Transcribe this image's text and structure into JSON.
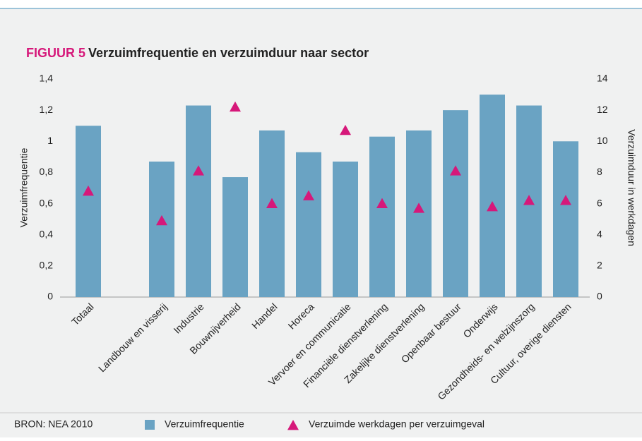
{
  "chart_data": {
    "type": "bar",
    "figure_label": "FIGUUR 5",
    "title": "Verzuimfrequentie en verzuimduur naar sector",
    "source": "BRON: NEA 2010",
    "y_label": "Verzuimfrequentie",
    "y2_label": "Verzuimduur in werkdagen",
    "categories": [
      "Totaal",
      null,
      "Landbouw en visserij",
      "Industrie",
      "Bouwnijverheid",
      "Handel",
      "Horeca",
      "Vervoer en communicatie",
      "Financiële dienstverlening",
      "Zakelijke dienstverlening",
      "Openbaar bestuur",
      "Onderwijs",
      "Gezondheids- en welzijnszorg",
      "Cultuur, overige diensten"
    ],
    "series": [
      {
        "name": "Verzuimfrequentie",
        "color": "#6aa3c3",
        "type": "bar",
        "values": [
          1.1,
          null,
          0.87,
          1.23,
          0.77,
          1.07,
          0.93,
          0.87,
          1.03,
          1.07,
          1.2,
          1.3,
          1.23,
          1.0
        ]
      },
      {
        "name": "Verzuimde werkdagen per verzuimgeval",
        "color": "#d6187a",
        "type": "triangle",
        "axis": "y2",
        "values": [
          6.8,
          null,
          4.9,
          8.1,
          12.2,
          6.0,
          6.5,
          10.7,
          6.0,
          5.7,
          8.1,
          5.8,
          6.2,
          6.2
        ]
      }
    ],
    "ylim": [
      0,
      1.4
    ],
    "yticks": [
      0,
      {
        "value": 0.2,
        "label": "0,2"
      },
      {
        "value": 0.4,
        "label": "0,4"
      },
      {
        "value": 0.6,
        "label": "0,6"
      },
      {
        "value": 0.8,
        "label": "0,8"
      },
      1,
      {
        "value": 1.2,
        "label": "1,2"
      },
      {
        "value": 1.4,
        "label": "1,4"
      }
    ],
    "y2lim": [
      0,
      14
    ],
    "y2ticks": [
      0,
      2,
      4,
      6,
      8,
      10,
      12,
      14
    ],
    "grid": false
  }
}
